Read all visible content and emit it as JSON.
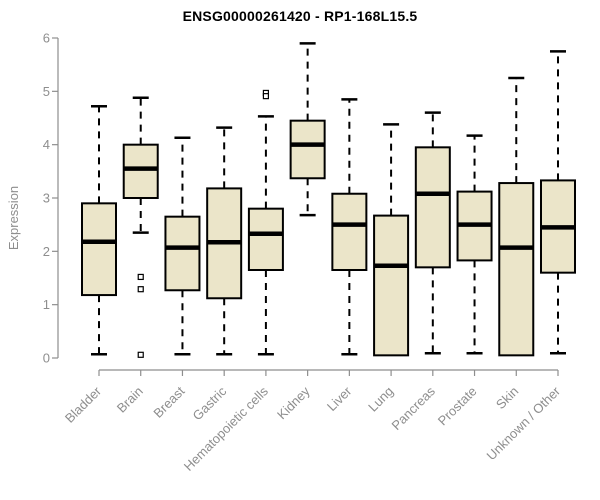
{
  "colors": {
    "background": "#ffffff",
    "box_fill": "#ebe5c9",
    "box_stroke": "#000000",
    "median": "#000000",
    "whisker": "#000000",
    "outlier_fill": "#ffffff",
    "axis": "#8e8e8e",
    "title": "#000000"
  },
  "chart_data": {
    "type": "boxplot",
    "title": "ENSG00000261420 - RP1-168L15.5",
    "xlabel": "",
    "ylabel": "Expression",
    "ylim": [
      0,
      6
    ],
    "yticks": [
      0,
      1,
      2,
      3,
      4,
      5,
      6
    ],
    "grid": false,
    "legend": null,
    "x_label_rotation_deg": 45,
    "categories": [
      "Bladder",
      "Brain",
      "Breast",
      "Gastric",
      "Hematopoietic cells",
      "Kidney",
      "Liver",
      "Lung",
      "Pancreas",
      "Prostate",
      "Skin",
      "Unknown / Other"
    ],
    "series": [
      {
        "name": "Bladder",
        "min": 0.07,
        "q1": 1.18,
        "median": 2.18,
        "q3": 2.9,
        "max": 4.72,
        "outliers": []
      },
      {
        "name": "Brain",
        "min": 2.35,
        "q1": 3.0,
        "median": 3.55,
        "q3": 4.0,
        "max": 4.88,
        "outliers": [
          1.52,
          1.29,
          0.06
        ]
      },
      {
        "name": "Breast",
        "min": 0.07,
        "q1": 1.27,
        "median": 2.07,
        "q3": 2.65,
        "max": 4.13,
        "outliers": []
      },
      {
        "name": "Gastric",
        "min": 0.07,
        "q1": 1.12,
        "median": 2.17,
        "q3": 3.18,
        "max": 4.32,
        "outliers": []
      },
      {
        "name": "Hematopoietic cells",
        "min": 0.07,
        "q1": 1.65,
        "median": 2.33,
        "q3": 2.8,
        "max": 4.53,
        "outliers": [
          4.97,
          4.91
        ]
      },
      {
        "name": "Kidney",
        "min": 2.68,
        "q1": 3.37,
        "median": 4.0,
        "q3": 4.45,
        "max": 5.9,
        "outliers": []
      },
      {
        "name": "Liver",
        "min": 0.07,
        "q1": 1.65,
        "median": 2.5,
        "q3": 3.08,
        "max": 4.85,
        "outliers": []
      },
      {
        "name": "Lung",
        "min": 0.05,
        "q1": 0.05,
        "median": 1.73,
        "q3": 2.67,
        "max": 4.38,
        "outliers": []
      },
      {
        "name": "Pancreas",
        "min": 0.09,
        "q1": 1.7,
        "median": 3.08,
        "q3": 3.95,
        "max": 4.6,
        "outliers": []
      },
      {
        "name": "Prostate",
        "min": 0.09,
        "q1": 1.83,
        "median": 2.5,
        "q3": 3.12,
        "max": 4.17,
        "outliers": []
      },
      {
        "name": "Skin",
        "min": 0.05,
        "q1": 0.05,
        "median": 2.07,
        "q3": 3.28,
        "max": 5.25,
        "outliers": []
      },
      {
        "name": "Unknown / Other",
        "min": 0.09,
        "q1": 1.6,
        "median": 2.45,
        "q3": 3.33,
        "max": 5.75,
        "outliers": []
      }
    ]
  }
}
